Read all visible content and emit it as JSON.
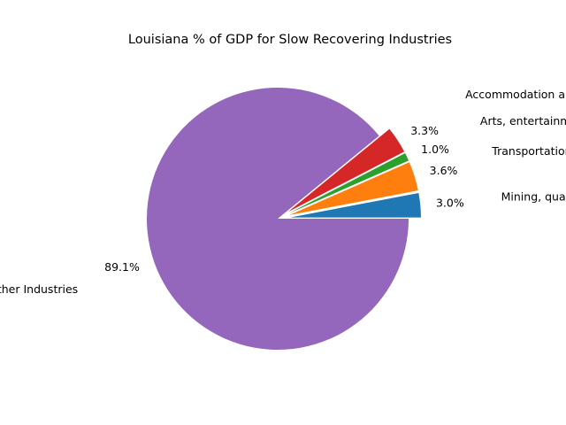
{
  "chart_data": {
    "type": "pie",
    "title": "Louisiana % of GDP for Slow Recovering Industries",
    "slices": [
      {
        "label": "Mining, quarrying, and oil and gas extraction",
        "value": 3.0,
        "pct_label": "3.0%",
        "color": "#1f77b4",
        "explode": true
      },
      {
        "label": "Transportation and warehousing",
        "value": 3.6,
        "pct_label": "3.6%",
        "color": "#ff7f0e",
        "explode": true
      },
      {
        "label": "Arts, entertainment, and recreation",
        "value": 1.0,
        "pct_label": "1.0%",
        "color": "#2ca02c",
        "explode": true
      },
      {
        "label": "Accommodation and food services",
        "value": 3.3,
        "pct_label": "3.3%",
        "color": "#d62728",
        "explode": true
      },
      {
        "label": "All Other Industries",
        "value": 89.1,
        "pct_label": "89.1%",
        "color": "#9467bd",
        "explode": false
      }
    ],
    "start_angle_deg": 0,
    "direction": "counterclockwise"
  }
}
